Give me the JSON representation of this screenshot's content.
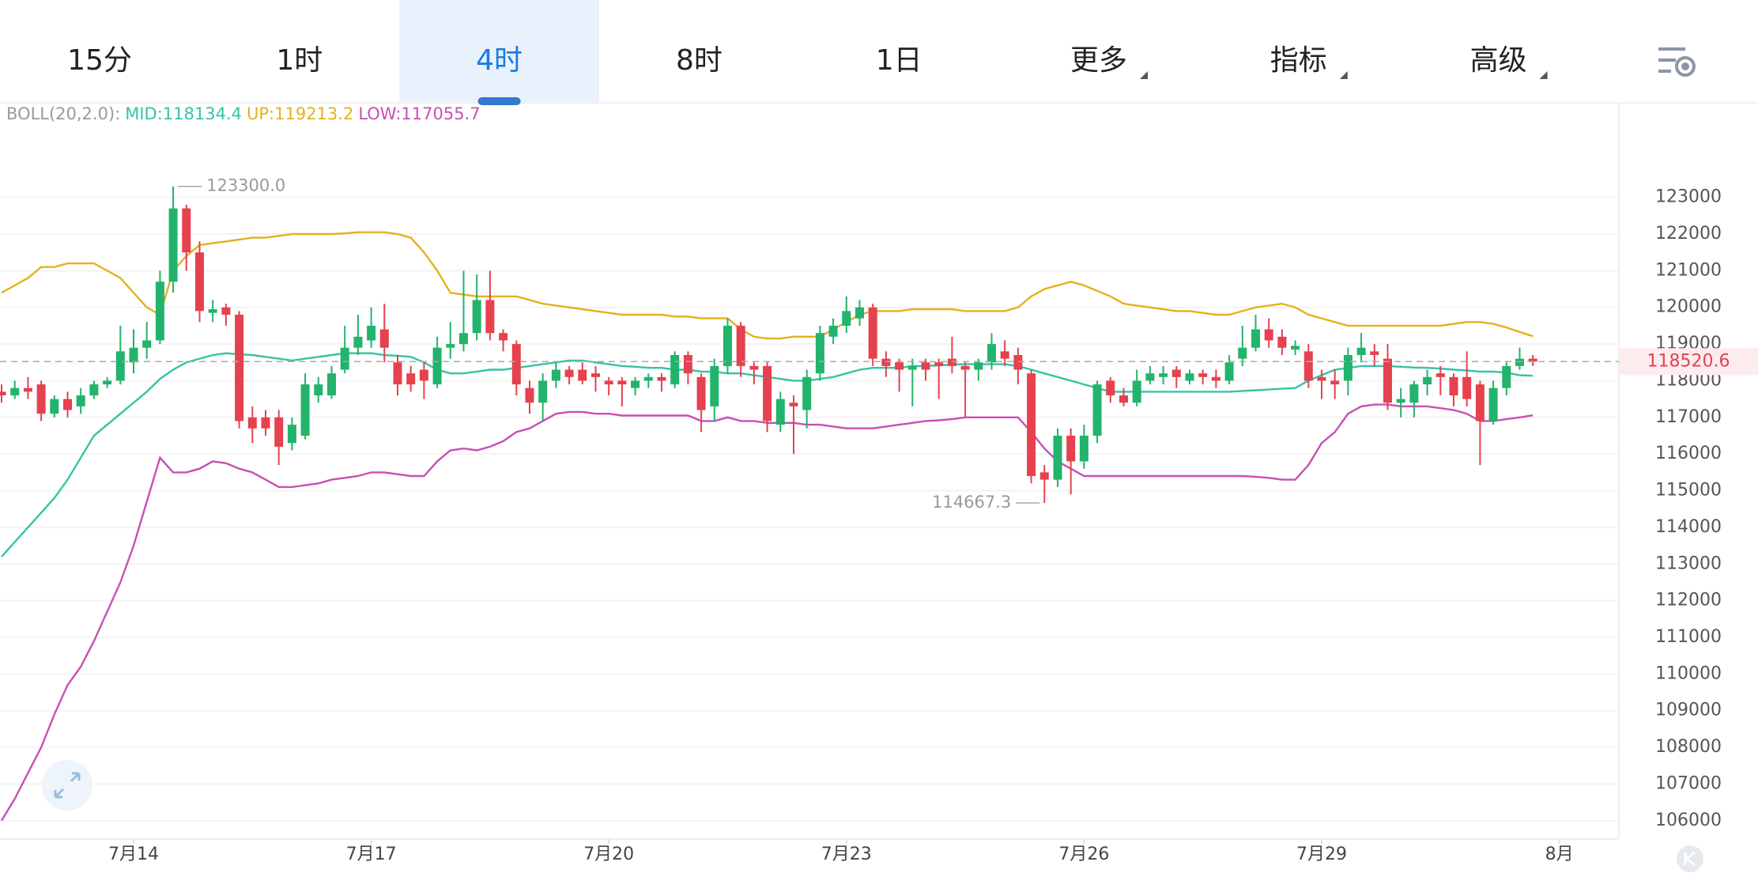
{
  "tabs": [
    {
      "label": "15分"
    },
    {
      "label": "1时"
    },
    {
      "label": "4时"
    },
    {
      "label": "8时"
    },
    {
      "label": "1日"
    },
    {
      "label": "更多",
      "dropdown": true
    },
    {
      "label": "指标",
      "dropdown": true
    },
    {
      "label": "高级",
      "dropdown": true
    }
  ],
  "active_tab": 2,
  "chart_data": {
    "type": "candlestick",
    "indicator": "BOLL(20,2.0):",
    "up_color": "#22b36c",
    "down_color": "#e5414e",
    "max_label": "123300.0",
    "min_label": "114667.3",
    "ylim": [
      105500,
      125580
    ],
    "yticks": [
      106000,
      107000,
      108000,
      109000,
      110000,
      111000,
      112000,
      113000,
      114000,
      115000,
      116000,
      117000,
      118000,
      119000,
      120000,
      121000,
      122000,
      123000
    ],
    "xticks": [
      {
        "value": 10,
        "label": "7月14"
      },
      {
        "value": 28,
        "label": "7月17"
      },
      {
        "value": 46,
        "label": "7月20"
      },
      {
        "value": 64,
        "label": "7月23"
      },
      {
        "value": 82,
        "label": "7月26"
      },
      {
        "value": 100,
        "label": "7月29"
      },
      {
        "value": 118,
        "label": "8月"
      }
    ],
    "grid": true,
    "open": [
      117700,
      117600,
      117800,
      117900,
      117100,
      117500,
      117300,
      117600,
      117900,
      118000,
      118500,
      118900,
      119100,
      120700,
      122700,
      121500,
      119850,
      120000,
      119800,
      117000,
      117000,
      117000,
      116300,
      116500,
      117600,
      117600,
      118300,
      118900,
      119100,
      119400,
      118500,
      118200,
      118300,
      117900,
      118900,
      119000,
      119300,
      120200,
      119300,
      119000,
      117800,
      117400,
      118000,
      118300,
      118300,
      118200,
      118000,
      118000,
      117800,
      118000,
      118100,
      117900,
      118700,
      118100,
      117300,
      118400,
      119500,
      118400,
      118400,
      116800,
      117400,
      117200,
      118200,
      119200,
      119500,
      119700,
      120000,
      118600,
      118500,
      118300,
      118500,
      118500,
      118600,
      118400,
      118300,
      118500,
      118800,
      118700,
      118200,
      115500,
      115300,
      116500,
      115800,
      116500,
      118000,
      117600,
      117400,
      118000,
      118100,
      118300,
      118000,
      118200,
      118100,
      118000,
      118600,
      118900,
      119400,
      119200,
      118850,
      118800,
      118100,
      118000,
      118000,
      118700,
      118800,
      118600,
      117400,
      117400,
      117900,
      118200,
      118100,
      118100,
      117900,
      116900,
      117800,
      118400,
      118600
    ],
    "high": [
      117900,
      118000,
      118100,
      118000,
      117600,
      117700,
      117800,
      118000,
      118100,
      119500,
      119400,
      119600,
      121000,
      123300,
      122800,
      121800,
      120200,
      120100,
      119900,
      117300,
      117200,
      117200,
      117000,
      118200,
      118100,
      118400,
      119500,
      119800,
      120000,
      120100,
      118700,
      118400,
      118500,
      119200,
      119600,
      121000,
      120900,
      121000,
      119400,
      119100,
      118000,
      118200,
      118500,
      118400,
      118500,
      118400,
      118100,
      118100,
      118100,
      118200,
      118200,
      118800,
      118800,
      118200,
      118600,
      119700,
      119600,
      118500,
      118500,
      117700,
      117600,
      118300,
      119500,
      119700,
      120300,
      120200,
      120100,
      118800,
      118600,
      118600,
      118600,
      118600,
      119200,
      118500,
      118600,
      119300,
      119100,
      118900,
      118300,
      115700,
      116700,
      116700,
      116800,
      118000,
      118100,
      117800,
      118300,
      118400,
      118400,
      118400,
      118300,
      118300,
      118300,
      118700,
      119500,
      119800,
      119700,
      119400,
      119100,
      119000,
      118300,
      118300,
      118900,
      119300,
      119000,
      119000,
      117800,
      118000,
      118300,
      118400,
      118200,
      118800,
      118000,
      118000,
      118500,
      118900,
      118700
    ],
    "low": [
      117400,
      117500,
      117500,
      116900,
      117000,
      117000,
      117100,
      117500,
      117800,
      117900,
      118200,
      118600,
      119000,
      120400,
      121000,
      119600,
      119600,
      119500,
      116700,
      116300,
      116500,
      115700,
      116100,
      116400,
      117400,
      117500,
      118200,
      118700,
      118900,
      118500,
      117600,
      117700,
      117500,
      117800,
      118600,
      118800,
      119100,
      119100,
      118800,
      117600,
      117100,
      116900,
      117800,
      117900,
      117900,
      117700,
      117600,
      117300,
      117600,
      117800,
      117700,
      117800,
      117900,
      116600,
      116900,
      118200,
      118100,
      117900,
      116600,
      116600,
      116000,
      116700,
      118000,
      119000,
      119300,
      119500,
      118400,
      118100,
      117700,
      117300,
      118000,
      117500,
      118200,
      117000,
      118000,
      118300,
      118400,
      117900,
      115200,
      114667.3,
      115100,
      114900,
      115600,
      116300,
      117400,
      117300,
      117300,
      117900,
      117900,
      117800,
      117900,
      117900,
      117800,
      117900,
      118400,
      118800,
      118900,
      118700,
      118700,
      117800,
      117500,
      117500,
      117600,
      118500,
      118400,
      117200,
      117000,
      117000,
      117600,
      117600,
      117300,
      117300,
      115700,
      116800,
      117600,
      118300,
      118400
    ],
    "close": [
      117600,
      117800,
      117700,
      117100,
      117500,
      117200,
      117600,
      117900,
      118000,
      118800,
      118900,
      119100,
      120700,
      122700,
      121500,
      119900,
      119950,
      119800,
      116900,
      116700,
      116700,
      116200,
      116800,
      117900,
      117900,
      118200,
      118900,
      119200,
      119500,
      118900,
      117900,
      117900,
      118000,
      118900,
      119000,
      119300,
      120200,
      119300,
      119100,
      117900,
      117400,
      118000,
      118300,
      118100,
      118000,
      118100,
      117900,
      117900,
      118000,
      118100,
      118000,
      118700,
      118200,
      117200,
      118400,
      119500,
      118400,
      118300,
      116900,
      117500,
      117300,
      118100,
      119300,
      119500,
      119900,
      120000,
      118600,
      118400,
      118300,
      118400,
      118300,
      118400,
      118400,
      118300,
      118500,
      119000,
      118600,
      118300,
      115400,
      115300,
      116500,
      115800,
      116500,
      117900,
      117600,
      117400,
      118000,
      118200,
      118200,
      118100,
      118200,
      118100,
      118000,
      118500,
      118900,
      119400,
      119100,
      118900,
      118950,
      118000,
      118000,
      117900,
      118700,
      118900,
      118700,
      117400,
      117500,
      117900,
      118100,
      118100,
      117600,
      117500,
      116900,
      117800,
      118400,
      118600,
      118520.6
    ],
    "series": [
      {
        "name": "MID:",
        "color": "#35c3a6",
        "values": [
          113200,
          113600,
          114000,
          114400,
          114800,
          115300,
          115900,
          116500,
          116800,
          117100,
          117400,
          117700,
          118050,
          118300,
          118500,
          118600,
          118700,
          118750,
          118720,
          118700,
          118650,
          118600,
          118550,
          118600,
          118650,
          118700,
          118750,
          118750,
          118750,
          118700,
          118680,
          118650,
          118500,
          118300,
          118200,
          118200,
          118250,
          118300,
          118300,
          118350,
          118400,
          118450,
          118500,
          118550,
          118550,
          118500,
          118450,
          118400,
          118380,
          118350,
          118350,
          118300,
          118300,
          118250,
          118250,
          118200,
          118200,
          118150,
          118100,
          118050,
          118000,
          118000,
          118050,
          118100,
          118200,
          118300,
          118350,
          118350,
          118350,
          118400,
          118400,
          118420,
          118440,
          118450,
          118450,
          118450,
          118450,
          118400,
          118300,
          118200,
          118100,
          118000,
          117900,
          117800,
          117700,
          117700,
          117700,
          117700,
          117700,
          117700,
          117700,
          117700,
          117700,
          117700,
          117720,
          117740,
          117760,
          117780,
          117800,
          118000,
          118150,
          118300,
          118350,
          118400,
          118400,
          118400,
          118380,
          118360,
          118350,
          118330,
          118300,
          118280,
          118250,
          118250,
          118220,
          118150,
          118134.4
        ]
      },
      {
        "name": "UP:",
        "color": "#e3b21c",
        "values": [
          120400,
          120600,
          120800,
          121100,
          121100,
          121200,
          121200,
          121200,
          121000,
          120800,
          120400,
          120000,
          119800,
          121000,
          121400,
          121700,
          121750,
          121800,
          121850,
          121900,
          121900,
          121950,
          122000,
          122000,
          122000,
          122000,
          122020,
          122050,
          122050,
          122050,
          122000,
          121900,
          121500,
          121000,
          120400,
          120350,
          120300,
          120300,
          120300,
          120300,
          120200,
          120100,
          120050,
          120000,
          119950,
          119900,
          119850,
          119800,
          119800,
          119800,
          119800,
          119750,
          119750,
          119700,
          119700,
          119700,
          119400,
          119200,
          119150,
          119150,
          119200,
          119200,
          119200,
          119400,
          119600,
          119800,
          119900,
          119900,
          119900,
          119950,
          119950,
          119950,
          119950,
          119900,
          119900,
          119900,
          119900,
          120000,
          120300,
          120500,
          120600,
          120700,
          120600,
          120450,
          120300,
          120100,
          120050,
          120000,
          119950,
          119900,
          119900,
          119850,
          119800,
          119800,
          119900,
          120000,
          120050,
          120100,
          120000,
          119800,
          119700,
          119600,
          119500,
          119500,
          119500,
          119500,
          119500,
          119500,
          119500,
          119500,
          119550,
          119600,
          119600,
          119550,
          119450,
          119330,
          119213.2
        ]
      },
      {
        "name": "LOW:",
        "color": "#c84fb4",
        "values": [
          106000,
          106600,
          107300,
          108000,
          108900,
          109700,
          110200,
          110900,
          111700,
          112500,
          113500,
          114700,
          115900,
          115500,
          115500,
          115600,
          115800,
          115750,
          115600,
          115500,
          115300,
          115100,
          115100,
          115150,
          115200,
          115300,
          115350,
          115400,
          115500,
          115500,
          115450,
          115400,
          115400,
          115800,
          116100,
          116150,
          116100,
          116200,
          116350,
          116600,
          116700,
          116900,
          117100,
          117150,
          117150,
          117100,
          117100,
          117050,
          117050,
          117050,
          117050,
          117050,
          117050,
          116900,
          116900,
          117000,
          116900,
          116900,
          116850,
          116850,
          116850,
          116800,
          116800,
          116750,
          116700,
          116700,
          116700,
          116750,
          116800,
          116850,
          116900,
          116920,
          116950,
          117000,
          117000,
          117000,
          117000,
          117000,
          116600,
          116150,
          115800,
          115600,
          115400,
          115400,
          115400,
          115400,
          115400,
          115400,
          115400,
          115400,
          115400,
          115400,
          115400,
          115400,
          115400,
          115380,
          115350,
          115300,
          115300,
          115700,
          116300,
          116600,
          117100,
          117300,
          117350,
          117350,
          117300,
          117300,
          117300,
          117250,
          117200,
          117100,
          116900,
          116900,
          116950,
          117000,
          117055.7
        ]
      }
    ]
  }
}
